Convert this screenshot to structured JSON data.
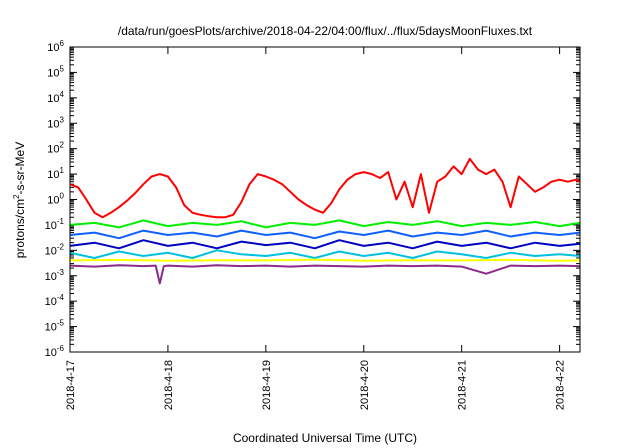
{
  "chart_data": {
    "type": "line",
    "title": "/data/run/goesPlots/archive/2018-04-22/04:00/flux/../flux/5daysMoonFluxes.txt",
    "xlabel": "Coordinated Universal Time (UTC)",
    "ylabel": "protons/cm²-s-sr-MeV",
    "ylabel_parts": {
      "pre": "protons/cm",
      "sup": "2",
      "post": "-s-sr-MeV"
    },
    "xscale": "date",
    "yscale": "log",
    "xlim": [
      "2018-04-17T00:00",
      "2018-04-22T05:00"
    ],
    "ylim": [
      1e-06,
      1000000.0
    ],
    "grid": false,
    "legend": "none",
    "x_ticks": [
      "2018-4-17",
      "2018-4-18",
      "2018-4-19",
      "2018-4-20",
      "2018-4-21",
      "2018-4-22"
    ],
    "y_ticks": [
      {
        "base": "10",
        "exp": "-6"
      },
      {
        "base": "10",
        "exp": "-5"
      },
      {
        "base": "10",
        "exp": "-4"
      },
      {
        "base": "10",
        "exp": "-3"
      },
      {
        "base": "10",
        "exp": "-2"
      },
      {
        "base": "10",
        "exp": "-1"
      },
      {
        "base": "10",
        "exp": "0"
      },
      {
        "base": "10",
        "exp": "1"
      },
      {
        "base": "10",
        "exp": "2"
      },
      {
        "base": "10",
        "exp": "3"
      },
      {
        "base": "10",
        "exp": "4"
      },
      {
        "base": "10",
        "exp": "5"
      },
      {
        "base": "10",
        "exp": "6"
      }
    ],
    "series": [
      {
        "color": "#ff0000",
        "x": [
          "2018-04-17T00:00",
          "2018-04-17T02:00",
          "2018-04-17T04:00",
          "2018-04-17T06:00",
          "2018-04-17T08:00",
          "2018-04-17T10:00",
          "2018-04-17T12:00",
          "2018-04-17T14:00",
          "2018-04-17T16:00",
          "2018-04-17T18:00",
          "2018-04-17T20:00",
          "2018-04-17T22:00",
          "2018-04-18T00:00",
          "2018-04-18T02:00",
          "2018-04-18T04:00",
          "2018-04-18T06:00",
          "2018-04-18T08:00",
          "2018-04-18T10:00",
          "2018-04-18T12:00",
          "2018-04-18T14:00",
          "2018-04-18T16:00",
          "2018-04-18T18:00",
          "2018-04-18T20:00",
          "2018-04-18T22:00",
          "2018-04-19T00:00",
          "2018-04-19T02:00",
          "2018-04-19T04:00",
          "2018-04-19T06:00",
          "2018-04-19T08:00",
          "2018-04-19T10:00",
          "2018-04-19T12:00",
          "2018-04-19T14:00",
          "2018-04-19T16:00",
          "2018-04-19T18:00",
          "2018-04-19T20:00",
          "2018-04-19T22:00",
          "2018-04-20T00:00",
          "2018-04-20T02:00",
          "2018-04-20T04:00",
          "2018-04-20T06:00",
          "2018-04-20T08:00",
          "2018-04-20T10:00",
          "2018-04-20T12:00",
          "2018-04-20T14:00",
          "2018-04-20T16:00",
          "2018-04-20T18:00",
          "2018-04-20T20:00",
          "2018-04-20T22:00",
          "2018-04-21T00:00",
          "2018-04-21T02:00",
          "2018-04-21T04:00",
          "2018-04-21T06:00",
          "2018-04-21T08:00",
          "2018-04-21T10:00",
          "2018-04-21T12:00",
          "2018-04-21T14:00",
          "2018-04-21T16:00",
          "2018-04-21T18:00",
          "2018-04-21T20:00",
          "2018-04-21T22:00",
          "2018-04-22T00:00",
          "2018-04-22T02:00",
          "2018-04-22T04:00",
          "2018-04-22T05:00"
        ],
        "y": [
          4.0,
          3.0,
          1.0,
          0.3,
          0.2,
          0.3,
          0.5,
          0.9,
          1.8,
          4.0,
          8.0,
          10.0,
          8.0,
          3.0,
          0.6,
          0.3,
          0.25,
          0.22,
          0.2,
          0.2,
          0.25,
          0.8,
          4.0,
          10.0,
          8.0,
          6.0,
          4.0,
          2.0,
          1.0,
          0.6,
          0.4,
          0.3,
          0.7,
          2.5,
          6.0,
          10.0,
          12.0,
          10.0,
          7.0,
          12.0,
          1.0,
          5.0,
          0.5,
          10.0,
          0.3,
          5.0,
          8.0,
          20.0,
          10.0,
          40.0,
          15.0,
          10.0,
          15.0,
          5.0,
          0.5,
          8.0,
          4.0,
          2.0,
          3.0,
          5.0,
          6.0,
          5.0,
          6.0,
          5.0
        ]
      },
      {
        "color": "#00ee00",
        "x": [
          "2018-04-17T00:00",
          "2018-04-17T06:00",
          "2018-04-17T12:00",
          "2018-04-17T18:00",
          "2018-04-18T00:00",
          "2018-04-18T06:00",
          "2018-04-18T12:00",
          "2018-04-18T18:00",
          "2018-04-19T00:00",
          "2018-04-19T06:00",
          "2018-04-19T12:00",
          "2018-04-19T18:00",
          "2018-04-20T00:00",
          "2018-04-20T06:00",
          "2018-04-20T12:00",
          "2018-04-20T18:00",
          "2018-04-21T00:00",
          "2018-04-21T06:00",
          "2018-04-21T12:00",
          "2018-04-21T18:00",
          "2018-04-22T00:00",
          "2018-04-22T05:00"
        ],
        "y": [
          0.1,
          0.12,
          0.08,
          0.15,
          0.09,
          0.12,
          0.1,
          0.14,
          0.08,
          0.12,
          0.1,
          0.15,
          0.09,
          0.13,
          0.1,
          0.14,
          0.09,
          0.12,
          0.1,
          0.13,
          0.09,
          0.12
        ]
      },
      {
        "color": "#00c0e0",
        "x": [
          "2018-04-17T00:00",
          "2018-04-17T06:00",
          "2018-04-17T12:00",
          "2018-04-17T18:00",
          "2018-04-18T00:00",
          "2018-04-18T06:00",
          "2018-04-18T12:00",
          "2018-04-18T18:00",
          "2018-04-19T00:00",
          "2018-04-19T06:00",
          "2018-04-19T12:00",
          "2018-04-19T18:00",
          "2018-04-20T00:00",
          "2018-04-20T06:00",
          "2018-04-20T12:00",
          "2018-04-20T18:00",
          "2018-04-21T00:00",
          "2018-04-21T06:00",
          "2018-04-21T12:00",
          "2018-04-21T18:00",
          "2018-04-22T00:00",
          "2018-04-22T05:00"
        ],
        "y": [
          0.008,
          0.005,
          0.009,
          0.006,
          0.008,
          0.005,
          0.01,
          0.007,
          0.006,
          0.008,
          0.005,
          0.009,
          0.006,
          0.008,
          0.005,
          0.009,
          0.007,
          0.005,
          0.008,
          0.006,
          0.007,
          0.006
        ]
      },
      {
        "color": "#1060ff",
        "x": [
          "2018-04-17T00:00",
          "2018-04-17T06:00",
          "2018-04-17T12:00",
          "2018-04-17T18:00",
          "2018-04-18T00:00",
          "2018-04-18T06:00",
          "2018-04-18T12:00",
          "2018-04-18T18:00",
          "2018-04-19T00:00",
          "2018-04-19T06:00",
          "2018-04-19T12:00",
          "2018-04-19T18:00",
          "2018-04-20T00:00",
          "2018-04-20T06:00",
          "2018-04-20T12:00",
          "2018-04-20T18:00",
          "2018-04-21T00:00",
          "2018-04-21T06:00",
          "2018-04-21T12:00",
          "2018-04-21T18:00",
          "2018-04-22T00:00",
          "2018-04-22T05:00"
        ],
        "y": [
          0.04,
          0.05,
          0.03,
          0.06,
          0.04,
          0.05,
          0.035,
          0.06,
          0.04,
          0.05,
          0.03,
          0.055,
          0.04,
          0.06,
          0.035,
          0.05,
          0.04,
          0.06,
          0.035,
          0.05,
          0.04,
          0.05
        ]
      },
      {
        "color": "#0000c0",
        "x": [
          "2018-04-17T00:00",
          "2018-04-17T06:00",
          "2018-04-17T12:00",
          "2018-04-17T18:00",
          "2018-04-18T00:00",
          "2018-04-18T06:00",
          "2018-04-18T12:00",
          "2018-04-18T18:00",
          "2018-04-19T00:00",
          "2018-04-19T06:00",
          "2018-04-19T12:00",
          "2018-04-19T18:00",
          "2018-04-20T00:00",
          "2018-04-20T06:00",
          "2018-04-20T12:00",
          "2018-04-20T18:00",
          "2018-04-21T00:00",
          "2018-04-21T06:00",
          "2018-04-21T12:00",
          "2018-04-21T18:00",
          "2018-04-22T00:00",
          "2018-04-22T05:00"
        ],
        "y": [
          0.015,
          0.02,
          0.012,
          0.025,
          0.015,
          0.02,
          0.012,
          0.022,
          0.016,
          0.02,
          0.012,
          0.025,
          0.015,
          0.02,
          0.012,
          0.022,
          0.015,
          0.02,
          0.012,
          0.02,
          0.015,
          0.018
        ]
      },
      {
        "color": "#ffff00",
        "x": [
          "2018-04-17T00:00",
          "2018-04-17T12:00",
          "2018-04-18T00:00",
          "2018-04-18T12:00",
          "2018-04-19T00:00",
          "2018-04-19T12:00",
          "2018-04-20T00:00",
          "2018-04-20T12:00",
          "2018-04-21T00:00",
          "2018-04-21T12:00",
          "2018-04-22T00:00",
          "2018-04-22T05:00"
        ],
        "y": [
          0.004,
          0.0042,
          0.0039,
          0.0041,
          0.004,
          0.0043,
          0.0039,
          0.0041,
          0.004,
          0.0042,
          0.0039,
          0.004
        ]
      },
      {
        "color": "#8b2a8b",
        "x": [
          "2018-04-17T00:00",
          "2018-04-17T06:00",
          "2018-04-17T12:00",
          "2018-04-17T18:00",
          "2018-04-17T21:00",
          "2018-04-17T22:00",
          "2018-04-17T23:00",
          "2018-04-18T00:00",
          "2018-04-18T06:00",
          "2018-04-18T12:00",
          "2018-04-18T18:00",
          "2018-04-19T00:00",
          "2018-04-19T06:00",
          "2018-04-19T12:00",
          "2018-04-19T18:00",
          "2018-04-20T00:00",
          "2018-04-20T06:00",
          "2018-04-20T12:00",
          "2018-04-20T18:00",
          "2018-04-21T00:00",
          "2018-04-21T06:00",
          "2018-04-21T12:00",
          "2018-04-21T18:00",
          "2018-04-22T00:00",
          "2018-04-22T05:00"
        ],
        "y": [
          0.0025,
          0.0023,
          0.0026,
          0.0024,
          0.0025,
          0.0005,
          0.0024,
          0.0025,
          0.0023,
          0.0026,
          0.0024,
          0.0025,
          0.0023,
          0.0025,
          0.0024,
          0.0023,
          0.0025,
          0.0024,
          0.0025,
          0.0023,
          0.0012,
          0.0025,
          0.0024,
          0.0025,
          0.0024
        ]
      }
    ]
  }
}
